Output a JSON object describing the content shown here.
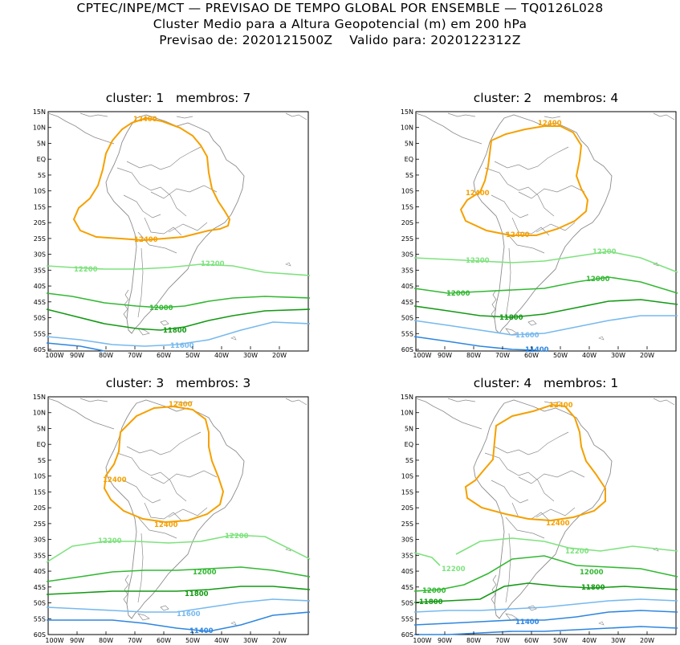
{
  "header": {
    "line1": "CPTEC/INPE/MCT — PREVISAO DE TEMPO GLOBAL POR ENSEMBLE — TQ0126L028",
    "line2": "Cluster Medio para a Altura Geopotencial (m) em 200 hPa",
    "line3": "Previsao de: 2020121500Z    Valido para: 2020122312Z"
  },
  "axes": {
    "lat_labels": [
      "15N",
      "10N",
      "5N",
      "EQ",
      "5S",
      "10S",
      "15S",
      "20S",
      "25S",
      "30S",
      "35S",
      "40S",
      "45S",
      "50S",
      "55S",
      "60S"
    ],
    "lon_labels": [
      "100W",
      "90W",
      "80W",
      "70W",
      "60W",
      "50W",
      "40W",
      "30W",
      "20W"
    ]
  },
  "colors": {
    "c12400": "#f5a000",
    "c12200": "#7ee27e",
    "c12000": "#33b833",
    "c11800": "#139913",
    "c11600": "#76b9ee",
    "c11400": "#2e86e0",
    "coast": "#8c8c8c"
  },
  "panels": [
    {
      "title": "cluster: 1   membros: 7",
      "labels": {
        "l12400a": "12400",
        "l12400b": "12400",
        "l12200a": "12200",
        "l12200b": "12200",
        "l12000": "12000",
        "l11800": "11800",
        "l11600": "11600"
      }
    },
    {
      "title": "cluster: 2   membros: 4",
      "labels": {
        "l12400a": "12400",
        "l12400b": "12400",
        "l12400c": "12400",
        "l12200a": "12200",
        "l12200b": "12200",
        "l12000a": "12000",
        "l12000b": "12000",
        "l11800": "11800",
        "l11600": "11600",
        "l11400": "11400"
      }
    },
    {
      "title": "cluster: 3   membros: 3",
      "labels": {
        "l12400a": "12400",
        "l12400b": "12400",
        "l12400c": "12400",
        "l12200a": "12200",
        "l12200b": "12200",
        "l12000": "12000",
        "l11800": "11800",
        "l11600": "11600",
        "l11400": "11400"
      }
    },
    {
      "title": "cluster: 4   membros: 1",
      "labels": {
        "l12400a": "12400",
        "l12400b": "12400",
        "l12200a": "12200",
        "l12200b": "12200",
        "l12000a": "12000",
        "l12000b": "12000",
        "l11800a": "11800",
        "l11800b": "11800",
        "l11400": "11400"
      }
    }
  ]
}
